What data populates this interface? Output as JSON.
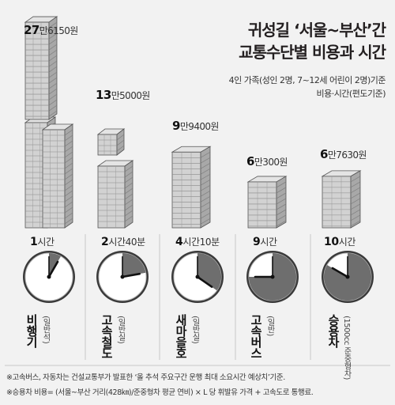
{
  "title_line1": "귀성길 ‘서울~부산’간",
  "title_line2": "교통수단별 비용과 시간",
  "subtitle_line1": "4인 가족(성인 2명, 7~12세 어린이 2명)기준",
  "subtitle_line2": "비용·시간(편도기준)",
  "colors": {
    "building_face": "#d2d2d2",
    "building_side": "#a8a8a8",
    "clock_face": "#ffffff",
    "clock_filled": "#6e6e6e",
    "background": "#f2f2f2"
  },
  "modes": [
    {
      "name": "비행기",
      "sub": "(일반석)",
      "cost_big": "27",
      "cost_small": "만6150원",
      "time_big": "1",
      "time_small": "시간"
    },
    {
      "name": "고속철도",
      "sub": "(일반실)",
      "cost_big": "13",
      "cost_small": "만5000원",
      "time_big": "2",
      "time_small": "시간40분"
    },
    {
      "name": "새마을호",
      "sub": "(일반실)",
      "cost_big": "9",
      "cost_small": "만9400원",
      "time_big": "4",
      "time_small": "시간10분"
    },
    {
      "name": "고속버스",
      "sub": "(일반)",
      "cost_big": "6",
      "cost_small": "만300원",
      "time_big": "9",
      "time_small": "시간"
    },
    {
      "name": "승용차",
      "sub": "(1500cc 준중형차)",
      "cost_big": "6",
      "cost_small": "만7630원",
      "time_big": "10",
      "time_small": "시간"
    }
  ],
  "notes": [
    "※고속버스, 자동차는 건설교통부가 발표한 ‘올 추석 주요구간 운행 최대 소요시간 예상치’기준.",
    "※승용차 비용= (서울~부산 거리(428㎞)/준중형차 평균 연비) × L 당 휘발유 가격 + 고속도로 통행료."
  ],
  "chart_data": {
    "type": "bar",
    "categories": [
      "비행기",
      "고속철도",
      "새마을호",
      "고속버스",
      "승용차"
    ],
    "series": [
      {
        "name": "비용",
        "values": [
          276150,
          135000,
          99400,
          60300,
          67630
        ]
      },
      {
        "name": "시간",
        "values": [
          60,
          160,
          250,
          540,
          600
        ]
      }
    ],
    "title": "귀성길 ‘서울~부산’간 교통수단별 비용과 시간"
  }
}
